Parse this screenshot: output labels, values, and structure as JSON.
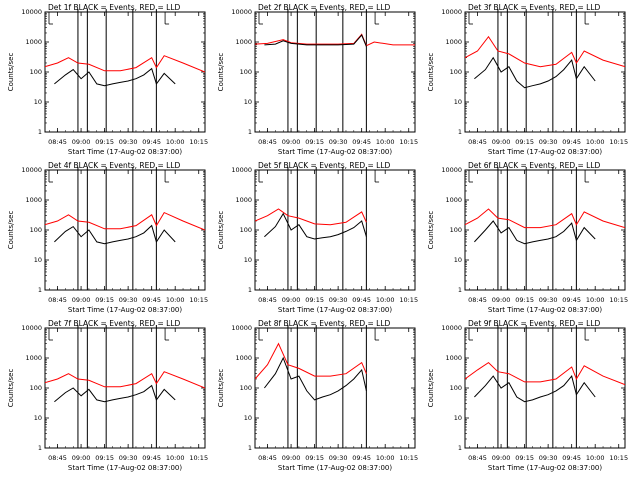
{
  "figure": {
    "title_template": "Det {det}f BLACK = Events, RED = LLD",
    "xlabel": "Start Time (17-Aug-02 08:37:00)",
    "ylabel": "Counts/sec",
    "x_ticks": [
      "08:45",
      "09:00",
      "09:15",
      "09:30",
      "09:45",
      "10:00",
      "10:15"
    ],
    "y_ticks": [
      "1",
      "10",
      "100",
      "1000",
      "10000"
    ],
    "colors": {
      "events": "#000000",
      "lld": "#ff0000",
      "frame": "#000000"
    }
  },
  "chart_data": [
    {
      "type": "line",
      "title": "Det 1f BLACK = Events, RED = LLD",
      "det": "1",
      "xlabel": "Start Time (17-Aug-02 08:37:00)",
      "ylabel": "Counts/sec",
      "yscale": "log",
      "ylim": [
        1,
        10000
      ],
      "x_range": [
        "08:37",
        "10:19"
      ],
      "marker_times": [
        "08:58",
        "09:04",
        "09:16",
        "09:33",
        "09:48"
      ],
      "gap_marks": [
        "08:37",
        "09:51"
      ],
      "series": [
        {
          "name": "BLACK = Events",
          "color": "#000000",
          "x": [
            "08:43",
            "08:50",
            "08:55",
            "09:00",
            "09:05",
            "09:10",
            "09:15",
            "09:20",
            "09:25",
            "09:30",
            "09:35",
            "09:40",
            "09:45",
            "09:48",
            "09:53",
            "10:00"
          ],
          "y": [
            40,
            80,
            120,
            60,
            100,
            40,
            35,
            40,
            45,
            50,
            60,
            80,
            130,
            40,
            90,
            40
          ]
        },
        {
          "name": "RED = LLD",
          "color": "#ff0000",
          "x": [
            "08:37",
            "08:45",
            "08:52",
            "08:58",
            "09:05",
            "09:15",
            "09:25",
            "09:35",
            "09:45",
            "09:48",
            "09:53",
            "10:05",
            "10:19"
          ],
          "y": [
            150,
            200,
            300,
            200,
            180,
            110,
            110,
            140,
            300,
            140,
            350,
            200,
            100
          ]
        }
      ]
    },
    {
      "type": "line",
      "title": "Det 2f BLACK = Events, RED = LLD",
      "det": "2",
      "xlabel": "Start Time (17-Aug-02 08:37:00)",
      "ylabel": "Counts/sec",
      "yscale": "log",
      "ylim": [
        1,
        10000
      ],
      "x_range": [
        "08:37",
        "10:19"
      ],
      "marker_times": [
        "08:58",
        "09:04",
        "09:16",
        "09:33",
        "09:48"
      ],
      "gap_marks": [
        "08:37",
        "09:51"
      ],
      "series": [
        {
          "name": "BLACK = Events",
          "color": "#000000",
          "x": [
            "08:43",
            "08:50",
            "08:55",
            "09:00",
            "09:10",
            "09:20",
            "09:30",
            "09:40",
            "09:45",
            "09:48"
          ],
          "y": [
            800,
            850,
            1100,
            900,
            800,
            800,
            800,
            850,
            1700,
            700
          ]
        },
        {
          "name": "RED = LLD",
          "color": "#ff0000",
          "x": [
            "08:37",
            "08:45",
            "08:55",
            "09:00",
            "09:10",
            "09:20",
            "09:30",
            "09:40",
            "09:45",
            "09:48",
            "09:53",
            "10:05",
            "10:19"
          ],
          "y": [
            850,
            900,
            1200,
            950,
            850,
            850,
            850,
            900,
            1800,
            750,
            1000,
            800,
            800
          ]
        }
      ]
    },
    {
      "type": "line",
      "title": "Det 3f BLACK = Events, RED = LLD",
      "det": "3",
      "xlabel": "Start Time (17-Aug-02 08:37:00)",
      "ylabel": "Counts/sec",
      "yscale": "log",
      "ylim": [
        1,
        10000
      ],
      "x_range": [
        "08:37",
        "10:19"
      ],
      "marker_times": [
        "08:58",
        "09:04",
        "09:16",
        "09:33",
        "09:48"
      ],
      "gap_marks": [
        "08:37",
        "09:51"
      ],
      "series": [
        {
          "name": "BLACK = Events",
          "color": "#000000",
          "x": [
            "08:43",
            "08:50",
            "08:55",
            "09:00",
            "09:05",
            "09:10",
            "09:15",
            "09:20",
            "09:25",
            "09:30",
            "09:35",
            "09:40",
            "09:45",
            "09:48",
            "09:53",
            "10:00"
          ],
          "y": [
            60,
            120,
            300,
            100,
            150,
            50,
            30,
            35,
            40,
            50,
            70,
            120,
            250,
            60,
            150,
            50
          ]
        },
        {
          "name": "RED = LLD",
          "color": "#ff0000",
          "x": [
            "08:37",
            "08:45",
            "08:52",
            "08:58",
            "09:05",
            "09:15",
            "09:25",
            "09:35",
            "09:45",
            "09:48",
            "09:53",
            "10:05",
            "10:19"
          ],
          "y": [
            300,
            500,
            1500,
            500,
            400,
            200,
            150,
            180,
            450,
            200,
            500,
            250,
            150
          ]
        }
      ]
    },
    {
      "type": "line",
      "title": "Det 4f BLACK = Events, RED = LLD",
      "det": "4",
      "xlabel": "Start Time (17-Aug-02 08:37:00)",
      "ylabel": "Counts/sec",
      "yscale": "log",
      "ylim": [
        1,
        10000
      ],
      "x_range": [
        "08:37",
        "10:19"
      ],
      "marker_times": [
        "08:58",
        "09:04",
        "09:16",
        "09:33",
        "09:48"
      ],
      "gap_marks": [
        "08:37",
        "09:51"
      ],
      "series": [
        {
          "name": "BLACK = Events",
          "color": "#000000",
          "x": [
            "08:43",
            "08:50",
            "08:55",
            "09:00",
            "09:05",
            "09:10",
            "09:15",
            "09:20",
            "09:25",
            "09:30",
            "09:35",
            "09:40",
            "09:45",
            "09:48",
            "09:53",
            "10:00"
          ],
          "y": [
            40,
            90,
            130,
            60,
            100,
            40,
            35,
            40,
            45,
            50,
            60,
            80,
            140,
            40,
            100,
            40
          ]
        },
        {
          "name": "RED = LLD",
          "color": "#ff0000",
          "x": [
            "08:37",
            "08:45",
            "08:52",
            "08:58",
            "09:05",
            "09:15",
            "09:25",
            "09:35",
            "09:45",
            "09:48",
            "09:53",
            "10:05",
            "10:19"
          ],
          "y": [
            150,
            200,
            320,
            200,
            180,
            110,
            110,
            140,
            320,
            140,
            380,
            200,
            100
          ]
        }
      ]
    },
    {
      "type": "line",
      "title": "Det 5f BLACK = Events, RED = LLD",
      "det": "5",
      "xlabel": "Start Time (17-Aug-02 08:37:00)",
      "ylabel": "Counts/sec",
      "yscale": "log",
      "ylim": [
        1,
        10000
      ],
      "x_range": [
        "08:37",
        "10:19"
      ],
      "marker_times": [
        "08:58",
        "09:04",
        "09:16",
        "09:33",
        "09:48"
      ],
      "gap_marks": [
        "08:37",
        "09:51"
      ],
      "series": [
        {
          "name": "BLACK = Events",
          "color": "#000000",
          "x": [
            "08:43",
            "08:50",
            "08:55",
            "09:00",
            "09:05",
            "09:10",
            "09:15",
            "09:20",
            "09:25",
            "09:30",
            "09:35",
            "09:40",
            "09:45",
            "09:48"
          ],
          "y": [
            60,
            130,
            350,
            100,
            150,
            60,
            50,
            55,
            60,
            70,
            90,
            120,
            200,
            60
          ]
        },
        {
          "name": "RED = LLD",
          "color": "#ff0000",
          "x": [
            "08:37",
            "08:45",
            "08:52",
            "08:58",
            "09:05",
            "09:15",
            "09:25",
            "09:35",
            "09:45",
            "09:48"
          ],
          "y": [
            200,
            300,
            500,
            300,
            250,
            160,
            150,
            180,
            400,
            180
          ]
        }
      ]
    },
    {
      "type": "line",
      "title": "Det 6f BLACK = Events, RED = LLD",
      "det": "6",
      "xlabel": "Start Time (17-Aug-02 08:37:00)",
      "ylabel": "Counts/sec",
      "yscale": "log",
      "ylim": [
        1,
        10000
      ],
      "x_range": [
        "08:37",
        "10:19"
      ],
      "marker_times": [
        "08:58",
        "09:04",
        "09:16",
        "09:33",
        "09:48"
      ],
      "gap_marks": [
        "08:37",
        "09:51"
      ],
      "series": [
        {
          "name": "BLACK = Events",
          "color": "#000000",
          "x": [
            "08:43",
            "08:50",
            "08:55",
            "09:00",
            "09:05",
            "09:10",
            "09:15",
            "09:20",
            "09:25",
            "09:30",
            "09:35",
            "09:40",
            "09:45",
            "09:48",
            "09:53",
            "10:00"
          ],
          "y": [
            40,
            100,
            200,
            80,
            120,
            45,
            35,
            40,
            45,
            50,
            60,
            90,
            170,
            45,
            120,
            50
          ]
        },
        {
          "name": "RED = LLD",
          "color": "#ff0000",
          "x": [
            "08:37",
            "08:45",
            "08:52",
            "08:58",
            "09:05",
            "09:15",
            "09:25",
            "09:35",
            "09:45",
            "09:48",
            "09:53",
            "10:05",
            "10:19"
          ],
          "y": [
            150,
            250,
            500,
            250,
            220,
            120,
            120,
            150,
            350,
            150,
            400,
            200,
            120
          ]
        }
      ]
    },
    {
      "type": "line",
      "title": "Det 7f BLACK = Events, RED = LLD",
      "det": "7",
      "xlabel": "Start Time (17-Aug-02 08:37:00)",
      "ylabel": "Counts/sec",
      "yscale": "log",
      "ylim": [
        1,
        10000
      ],
      "x_range": [
        "08:37",
        "10:19"
      ],
      "marker_times": [
        "08:58",
        "09:04",
        "09:16",
        "09:33",
        "09:48"
      ],
      "gap_marks": [
        "08:37",
        "09:51"
      ],
      "series": [
        {
          "name": "BLACK = Events",
          "color": "#000000",
          "x": [
            "08:43",
            "08:50",
            "08:55",
            "09:00",
            "09:05",
            "09:10",
            "09:15",
            "09:20",
            "09:25",
            "09:30",
            "09:35",
            "09:40",
            "09:45",
            "09:48",
            "09:53",
            "10:00"
          ],
          "y": [
            35,
            70,
            100,
            55,
            90,
            40,
            35,
            40,
            45,
            50,
            60,
            75,
            120,
            40,
            90,
            40
          ]
        },
        {
          "name": "RED = LLD",
          "color": "#ff0000",
          "x": [
            "08:37",
            "08:45",
            "08:52",
            "08:58",
            "09:05",
            "09:15",
            "09:25",
            "09:35",
            "09:45",
            "09:48",
            "09:53",
            "10:05",
            "10:19"
          ],
          "y": [
            150,
            200,
            300,
            200,
            180,
            110,
            110,
            140,
            300,
            140,
            350,
            200,
            100
          ]
        }
      ]
    },
    {
      "type": "line",
      "title": "Det 8f BLACK = Events, RED = LLD",
      "det": "8",
      "xlabel": "Start Time (17-Aug-02 08:37:00)",
      "ylabel": "Counts/sec",
      "yscale": "log",
      "ylim": [
        1,
        10000
      ],
      "x_range": [
        "08:37",
        "10:19"
      ],
      "marker_times": [
        "08:58",
        "09:04",
        "09:16",
        "09:33",
        "09:48"
      ],
      "gap_marks": [
        "08:37",
        "09:51"
      ],
      "series": [
        {
          "name": "BLACK = Events",
          "color": "#000000",
          "x": [
            "08:43",
            "08:50",
            "08:55",
            "09:00",
            "09:05",
            "09:10",
            "09:15",
            "09:20",
            "09:25",
            "09:30",
            "09:35",
            "09:40",
            "09:45",
            "09:48"
          ],
          "y": [
            100,
            300,
            1000,
            200,
            250,
            80,
            40,
            50,
            60,
            80,
            120,
            200,
            400,
            80
          ]
        },
        {
          "name": "RED = LLD",
          "color": "#ff0000",
          "x": [
            "08:37",
            "08:45",
            "08:52",
            "08:58",
            "09:05",
            "09:15",
            "09:25",
            "09:35",
            "09:45",
            "09:48"
          ],
          "y": [
            200,
            600,
            3000,
            600,
            450,
            250,
            250,
            300,
            700,
            300
          ]
        }
      ]
    },
    {
      "type": "line",
      "title": "Det 9f BLACK = Events, RED = LLD",
      "det": "9",
      "xlabel": "Start Time (17-Aug-02 08:37:00)",
      "ylabel": "Counts/sec",
      "yscale": "log",
      "ylim": [
        1,
        10000
      ],
      "x_range": [
        "08:37",
        "10:19"
      ],
      "marker_times": [
        "08:58",
        "09:04",
        "09:16",
        "09:33",
        "09:48"
      ],
      "gap_marks": [
        "08:37",
        "09:51"
      ],
      "series": [
        {
          "name": "BLACK = Events",
          "color": "#000000",
          "x": [
            "08:43",
            "08:50",
            "08:55",
            "09:00",
            "09:05",
            "09:10",
            "09:15",
            "09:20",
            "09:25",
            "09:30",
            "09:35",
            "09:40",
            "09:45",
            "09:48",
            "09:53",
            "10:00"
          ],
          "y": [
            50,
            120,
            250,
            100,
            150,
            50,
            35,
            40,
            50,
            60,
            80,
            120,
            250,
            60,
            150,
            50
          ]
        },
        {
          "name": "RED = LLD",
          "color": "#ff0000",
          "x": [
            "08:37",
            "08:45",
            "08:52",
            "08:58",
            "09:05",
            "09:15",
            "09:25",
            "09:35",
            "09:45",
            "09:48",
            "09:53",
            "10:05",
            "10:19"
          ],
          "y": [
            200,
            400,
            700,
            350,
            300,
            160,
            160,
            200,
            500,
            200,
            550,
            250,
            130
          ]
        }
      ]
    }
  ]
}
